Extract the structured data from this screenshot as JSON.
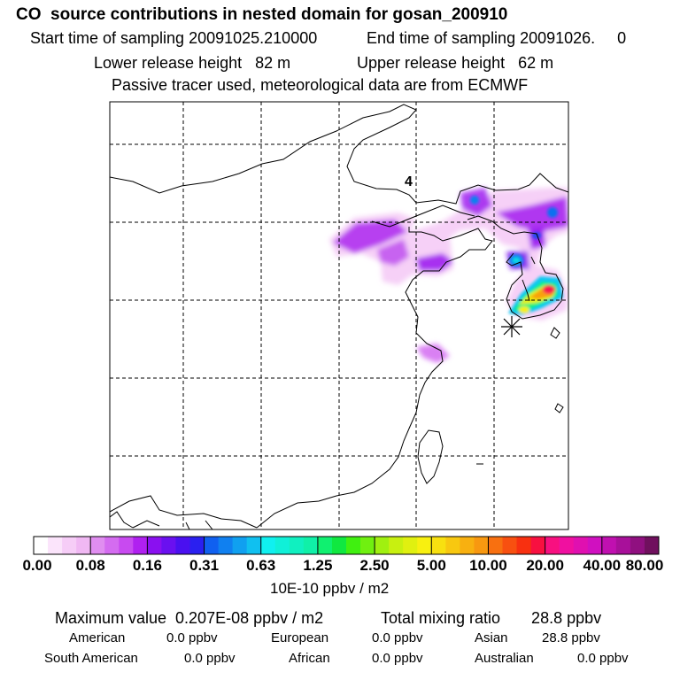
{
  "title": "CO  source contributions in nested domain for gosan_200910",
  "subtitle": {
    "start": "Start time of sampling 20091025.210000",
    "end": "End time of sampling 20091026.     0",
    "lower": "Lower release height   82 m",
    "upper": "Upper release height   62 m",
    "note": "Passive tracer used, meteorological data are from ECMWF"
  },
  "map": {
    "label": "4",
    "colors": {
      "land_outline": "#000000",
      "grid": "#000000"
    }
  },
  "colorbar": {
    "tick_labels": [
      "0.00",
      "0.08",
      "0.16",
      "0.31",
      "0.63",
      "1.25",
      "2.50",
      "5.00",
      "10.00",
      "20.00",
      "40.00",
      "80.00"
    ],
    "units": "10E-10 ppbv / m2",
    "colors": [
      "#ffffff",
      "#fbe4fb",
      "#f6cdf7",
      "#f0b8f3",
      "#e08ef0",
      "#d46cf0",
      "#c84af0",
      "#b020f0",
      "#8a10f0",
      "#6a10f0",
      "#4a10f0",
      "#2a20f0",
      "#1060f0",
      "#1080f0",
      "#10a0f0",
      "#10c0f0",
      "#10f0f0",
      "#10f0d8",
      "#10f0c0",
      "#10f0a8",
      "#10f070",
      "#10e840",
      "#40f010",
      "#70f010",
      "#a0f010",
      "#c8f010",
      "#e0f010",
      "#f8f010",
      "#f8e010",
      "#f8c810",
      "#f8b010",
      "#f89810",
      "#f87010",
      "#f85010",
      "#f83010",
      "#f81040",
      "#f81080",
      "#f010a0",
      "#e010b0",
      "#d010c0",
      "#c010b0",
      "#a8109a",
      "#901080",
      "#70105e"
    ]
  },
  "stats": {
    "max": "Maximum value  0.207E-08 ppbv / m2",
    "total": "Total mixing ratio       28.8 ppbv",
    "regions": [
      {
        "name": "American",
        "value": "0.0 ppbv"
      },
      {
        "name": "European",
        "value": "0.0 ppbv"
      },
      {
        "name": "Asian",
        "value": "28.8 ppbv"
      },
      {
        "name": "South American",
        "value": "0.0 ppbv"
      },
      {
        "name": "African",
        "value": "0.0 ppbv"
      },
      {
        "name": "Australian",
        "value": "0.0 ppbv"
      }
    ]
  }
}
